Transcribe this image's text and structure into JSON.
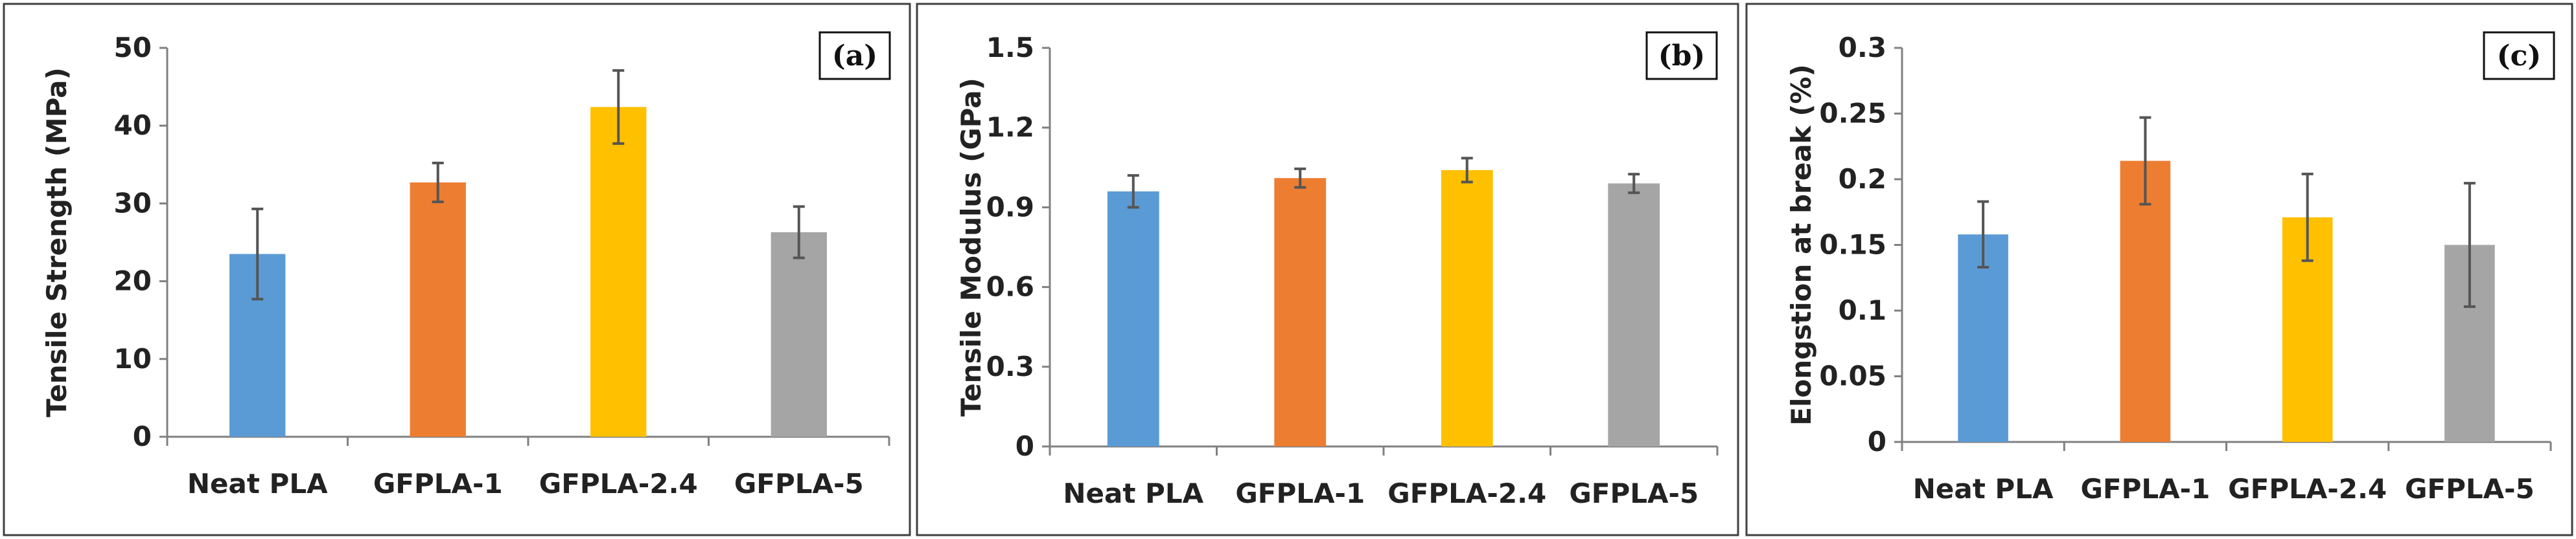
{
  "chart_data": [
    {
      "type": "bar",
      "panel": "(a)",
      "categories": [
        "Neat PLA",
        "GFPLA-1",
        "GFPLA-2.4",
        "GFPLA-5"
      ],
      "values": [
        23.5,
        32.7,
        42.4,
        26.3
      ],
      "errors": [
        5.8,
        2.5,
        4.7,
        3.3
      ],
      "colors": [
        "#5b9bd5",
        "#ed7d31",
        "#ffc000",
        "#a5a5a5"
      ],
      "ylabel": "Tensile Strength (MPa)",
      "xlabel": "",
      "ylim": [
        0,
        50
      ],
      "ticks": [
        0,
        10,
        20,
        30,
        40,
        50
      ],
      "tick_labels": [
        "0",
        "10",
        "20",
        "30",
        "40",
        "50"
      ]
    },
    {
      "type": "bar",
      "panel": "(b)",
      "categories": [
        "Neat PLA",
        "GFPLA-1",
        "GFPLA-2.4",
        "GFPLA-5"
      ],
      "values": [
        0.96,
        1.01,
        1.04,
        0.99
      ],
      "errors": [
        0.06,
        0.035,
        0.045,
        0.035
      ],
      "colors": [
        "#5b9bd5",
        "#ed7d31",
        "#ffc000",
        "#a5a5a5"
      ],
      "ylabel": "Tensile Modulus (GPa)",
      "xlabel": "",
      "ylim": [
        0,
        1.5
      ],
      "ticks": [
        0,
        0.3,
        0.6,
        0.9,
        1.2,
        1.5
      ],
      "tick_labels": [
        "0",
        "0.3",
        "0.6",
        "0.9",
        "1.2",
        "1.5"
      ]
    },
    {
      "type": "bar",
      "panel": "(c)",
      "categories": [
        "Neat PLA",
        "GFPLA-1",
        "GFPLA-2.4",
        "GFPLA-5"
      ],
      "values": [
        0.158,
        0.214,
        0.171,
        0.15
      ],
      "errors": [
        0.025,
        0.033,
        0.033,
        0.047
      ],
      "colors": [
        "#5b9bd5",
        "#ed7d31",
        "#ffc000",
        "#a5a5a5"
      ],
      "ylabel": "Elongstion at break (%)",
      "xlabel": "",
      "ylim": [
        0,
        0.3
      ],
      "ticks": [
        0,
        0.05,
        0.1,
        0.15,
        0.2,
        0.25,
        0.3
      ],
      "tick_labels": [
        "0",
        "0.05",
        "0.1",
        "0.15",
        "0.2",
        "0.25",
        "0.3"
      ]
    }
  ]
}
